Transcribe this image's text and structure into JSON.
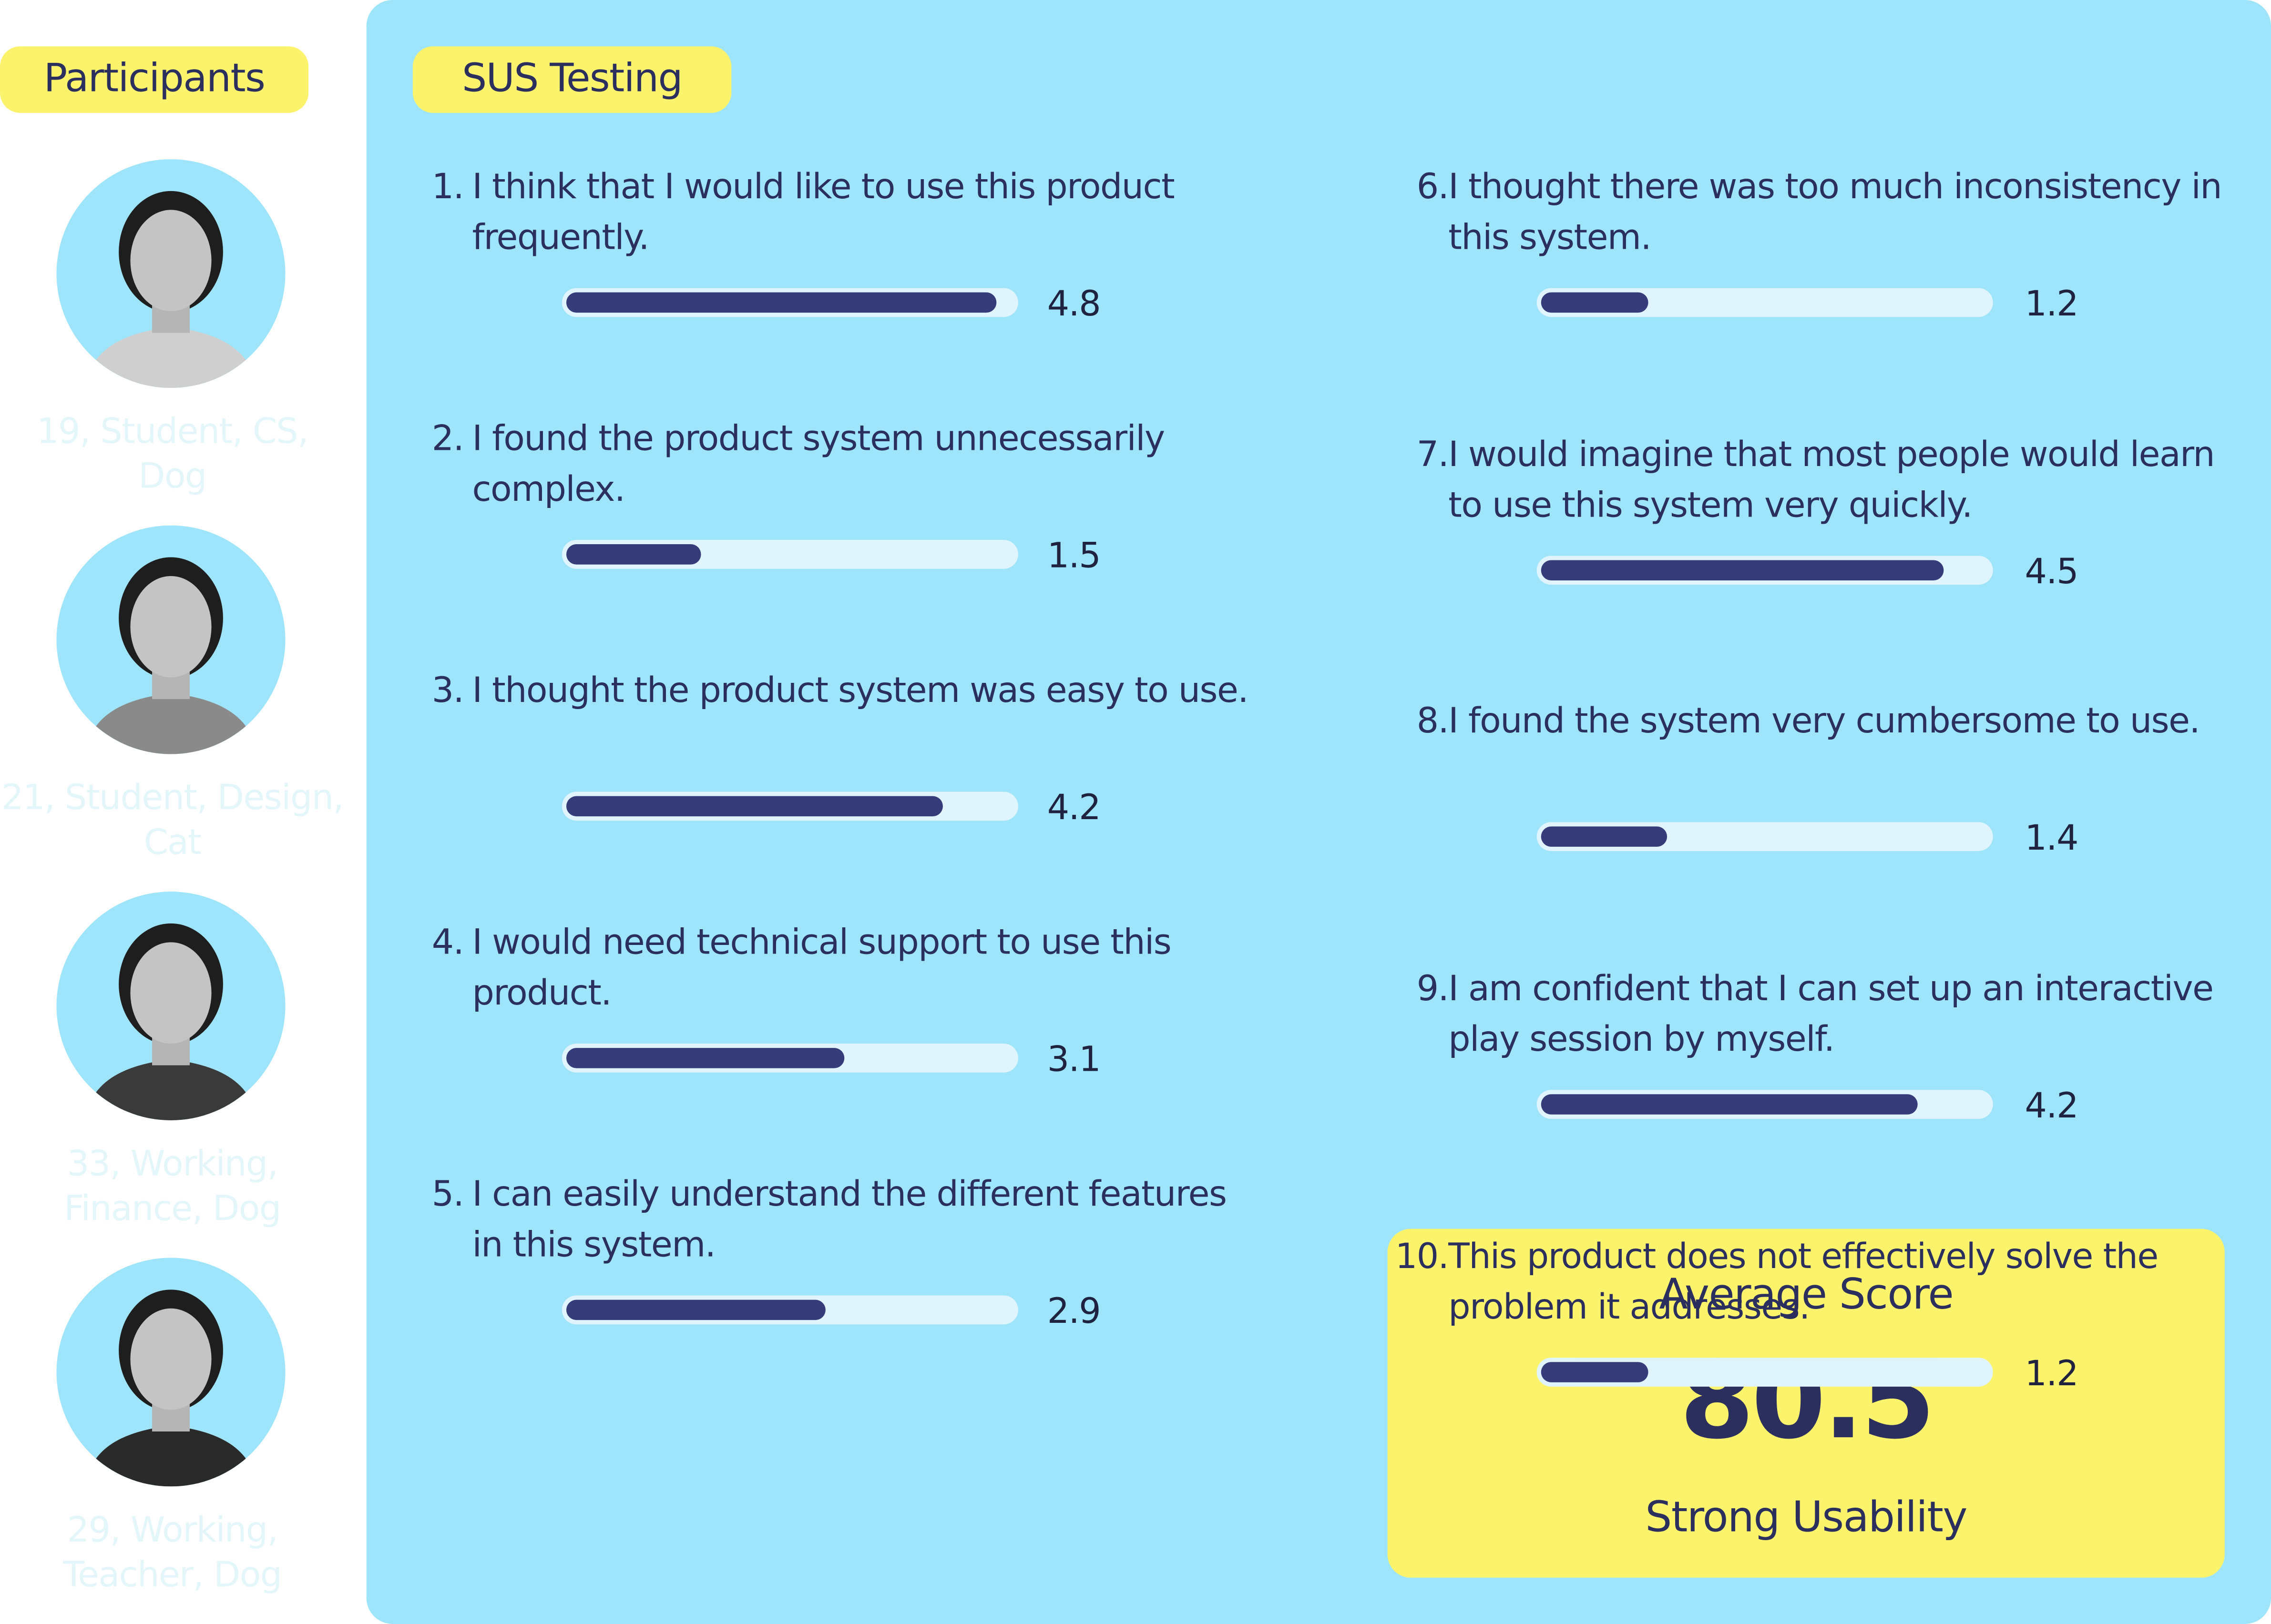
{
  "participants": {
    "title": "Participants",
    "people": [
      {
        "label": "19, Student, CS, Dog"
      },
      {
        "label": "21, Student, Design, Cat"
      },
      {
        "label": "33, Working, Finance, Dog"
      },
      {
        "label": "29, Working, Teacher, Dog"
      }
    ]
  },
  "sus": {
    "title": "SUS Testing",
    "xlim": [
      0,
      5
    ],
    "questions": [
      {
        "number": "1.",
        "text": "I think that I would like to use this product frequently.",
        "score": 4.8
      },
      {
        "number": "2.",
        "text": "I found the product system unnecessarily complex.",
        "score": 1.5
      },
      {
        "number": "3.",
        "text": "I thought the product system was easy to use.",
        "score": 4.2
      },
      {
        "number": "4.",
        "text": "I would need technical support to use this product.",
        "score": 3.1
      },
      {
        "number": "5.",
        "text": "I can easily understand the different features in this system.",
        "score": 2.9
      },
      {
        "number": "6.",
        "text": "I thought there was too much inconsistency in this system.",
        "score": 1.2
      },
      {
        "number": "7.",
        "text": "I would imagine that most people would learn to use this system very quickly.",
        "score": 4.5
      },
      {
        "number": "8.",
        "text": "I found the system very cumbersome to use.",
        "score": 1.4
      },
      {
        "number": "9.",
        "text": "I am confident that I can set up an interactive play session by myself.",
        "score": 4.2
      },
      {
        "number": "10.",
        "text": "This product does not effectively solve the problem it addresses.",
        "score": 1.2
      }
    ]
  },
  "summary": {
    "title": "Average Score",
    "score": 80.5,
    "rating": "Strong Usability"
  }
}
